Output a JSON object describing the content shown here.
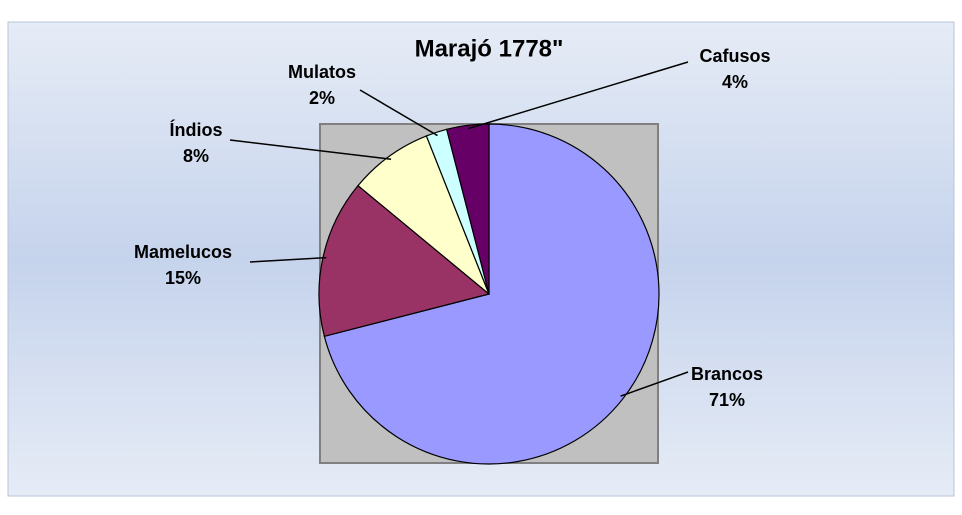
{
  "chart_data": {
    "type": "pie",
    "title": "Marajó 1778\"",
    "categories": [
      "Brancos",
      "Mamelucos",
      "Índios",
      "Mulatos",
      "Cafusos"
    ],
    "values": [
      71,
      15,
      8,
      2,
      4
    ],
    "value_labels": [
      "71%",
      "15%",
      "8%",
      "2%",
      "4%"
    ],
    "colors": [
      "#9999ff",
      "#993366",
      "#ffffcc",
      "#ccffff",
      "#660066"
    ]
  }
}
